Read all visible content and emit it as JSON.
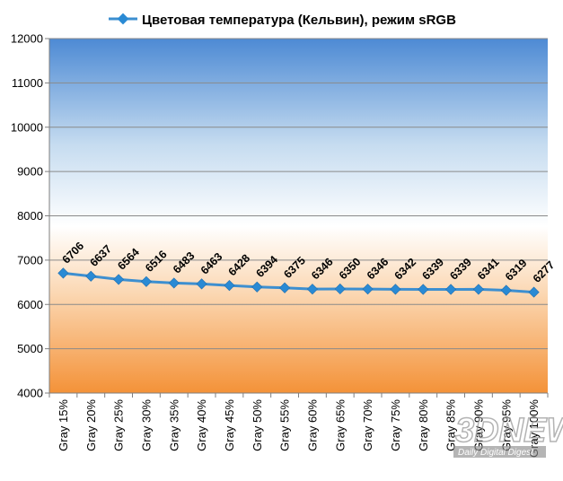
{
  "chart_data": {
    "type": "line",
    "legend": "top-center",
    "grid": true,
    "ylim": [
      4000,
      12000
    ],
    "yticks": [
      "4000",
      "5000",
      "6000",
      "7000",
      "8000",
      "9000",
      "10000",
      "11000",
      "12000"
    ],
    "categories": [
      "Gray 15%",
      "Gray 20%",
      "Gray 25%",
      "Gray 30%",
      "Gray 35%",
      "Gray 40%",
      "Gray 45%",
      "Gray 50%",
      "Gray 55%",
      "Gray 60%",
      "Gray 65%",
      "Gray 70%",
      "Gray 75%",
      "Gray 80%",
      "Gray 85%",
      "Gray 90%",
      "Gray 95%",
      "Gray 100%"
    ],
    "series": [
      {
        "name": "Цветовая температура (Кельвин), режим sRGB",
        "values": [
          6706,
          6637,
          6564,
          6516,
          6483,
          6463,
          6428,
          6394,
          6375,
          6346,
          6350,
          6346,
          6342,
          6339,
          6339,
          6341,
          6319,
          6277
        ],
        "color": "#3d8fd0",
        "marker_color": "#2a8ad4"
      }
    ],
    "background": {
      "top": "#4d8ad4",
      "middle": "#ffffff",
      "bottom": "#f49238"
    },
    "watermark": {
      "brand": "3DNEWS",
      "tagline": "Daily Digital Digest"
    }
  }
}
